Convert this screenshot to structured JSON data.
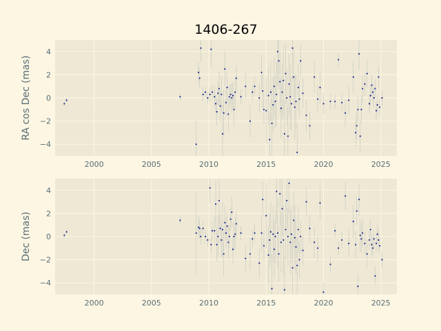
{
  "title": "1406-267",
  "colors": {
    "background": "#fdf6e3",
    "axes_face": "#eee8d5",
    "point": "#1c2a8f",
    "errorbar": "#93a1a1"
  },
  "chart_data": [
    {
      "type": "scatter",
      "ylabel": "RA cos Dec (mas)",
      "xlim": [
        1996.6,
        2026.4
      ],
      "ylim": [
        -5.0,
        5.0
      ],
      "xticks": [
        2000,
        2005,
        2010,
        2015,
        2020,
        2025
      ],
      "yticks": [
        -4,
        -2,
        0,
        2,
        4
      ],
      "grid": true,
      "series": [
        {
          "x": [
            1997.4,
            1997.6,
            2007.5,
            2008.9,
            2009.1,
            2009.2,
            2009.3,
            2009.5,
            2009.7,
            2009.9,
            2010.1,
            2010.2,
            2010.3,
            2010.5,
            2010.6,
            2010.7,
            2010.8,
            2010.9,
            2011.0,
            2011.1,
            2011.2,
            2011.3,
            2011.4,
            2011.5,
            2011.6,
            2011.7,
            2011.8,
            2011.9,
            2012.0,
            2012.1,
            2012.2,
            2012.3,
            2012.4,
            2012.8,
            2013.2,
            2013.6,
            2013.8,
            2014.0,
            2014.4,
            2014.6,
            2014.7,
            2014.8,
            2015.0,
            2015.2,
            2015.3,
            2015.4,
            2015.5,
            2015.6,
            2015.7,
            2015.8,
            2015.9,
            2016.0,
            2016.1,
            2016.2,
            2016.3,
            2016.4,
            2016.5,
            2016.6,
            2016.7,
            2016.8,
            2016.9,
            2017.0,
            2017.1,
            2017.2,
            2017.3,
            2017.4,
            2017.5,
            2017.6,
            2017.7,
            2017.8,
            2017.9,
            2018.0,
            2018.2,
            2018.5,
            2018.8,
            2019.2,
            2019.5,
            2019.7,
            2020.0,
            2020.6,
            2021.0,
            2021.3,
            2021.6,
            2021.9,
            2022.2,
            2022.6,
            2022.8,
            2022.9,
            2023.0,
            2023.1,
            2023.2,
            2023.3,
            2023.4,
            2023.6,
            2023.8,
            2024.0,
            2024.1,
            2024.2,
            2024.3,
            2024.4,
            2024.5,
            2024.6,
            2024.7,
            2024.8,
            2024.9,
            2025.1
          ],
          "y": [
            -0.5,
            -0.2,
            0.1,
            -4.0,
            2.2,
            1.7,
            4.3,
            0.3,
            0.5,
            0.0,
            0.3,
            4.2,
            0.5,
            0.1,
            -0.5,
            -1.2,
            0.4,
            0.8,
            -0.7,
            0.3,
            -3.1,
            -1.3,
            2.5,
            -0.4,
            0.9,
            -1.4,
            0.1,
            0.3,
            0.0,
            0.2,
            -1.0,
            0.5,
            1.7,
            0.1,
            1.0,
            -2.0,
            0.5,
            1.0,
            0.0,
            2.2,
            0.6,
            -1.0,
            -1.1,
            0.2,
            -3.6,
            0.5,
            -2.2,
            -0.6,
            1.0,
            -0.3,
            0.3,
            4.0,
            3.2,
            1.4,
            -0.9,
            0.5,
            1.5,
            -3.1,
            2.1,
            0.0,
            -3.3,
            1.2,
            0.1,
            -0.5,
            4.3,
            1.8,
            -0.8,
            -0.3,
            -4.7,
            0.9,
            -0.1,
            3.2,
            0.4,
            -1.5,
            -2.4,
            1.8,
            -0.1,
            0.9,
            -0.5,
            -0.3,
            -0.3,
            3.3,
            -0.4,
            -1.3,
            -0.2,
            1.8,
            -3.0,
            -2.4,
            -1.0,
            3.8,
            -3.3,
            -1.0,
            0.8,
            1.2,
            2.1,
            -0.5,
            0.2,
            1.1,
            0.5,
            0.0,
            0.8,
            -1.1,
            -0.6,
            1.8,
            -0.8,
            0.0
          ],
          "err": [
            0.2,
            0.2,
            0.3,
            2.0,
            0.9,
            0.9,
            1.2,
            0.6,
            0.5,
            0.5,
            0.6,
            1.5,
            0.6,
            0.9,
            0.8,
            1.2,
            1.0,
            1.5,
            1.4,
            1.6,
            2.5,
            2.0,
            1.5,
            1.2,
            1.2,
            1.5,
            1.0,
            0.9,
            1.3,
            1.2,
            1.4,
            1.4,
            1.1,
            0.6,
            1.1,
            1.4,
            0.7,
            0.8,
            1.3,
            1.5,
            1.5,
            1.3,
            2.8,
            2.5,
            2.3,
            2.6,
            3.0,
            2.4,
            2.5,
            2.3,
            2.8,
            3.0,
            2.4,
            2.7,
            2.6,
            2.5,
            3.0,
            2.9,
            2.6,
            2.4,
            2.5,
            2.6,
            2.8,
            2.4,
            2.9,
            2.5,
            2.8,
            2.4,
            2.5,
            2.0,
            1.6,
            1.4,
            1.3,
            1.3,
            1.2,
            1.3,
            1.2,
            1.4,
            0.9,
            0.7,
            0.6,
            0.6,
            0.7,
            1.2,
            1.2,
            1.4,
            1.2,
            1.2,
            1.1,
            1.4,
            1.4,
            1.2,
            1.2,
            1.0,
            1.2,
            0.8,
            0.9,
            0.9,
            0.8,
            0.8,
            0.8,
            0.8,
            0.8,
            0.9,
            0.8,
            0.7
          ]
        }
      ]
    },
    {
      "type": "scatter",
      "ylabel": "Dec (mas)",
      "xlim": [
        1996.6,
        2026.4
      ],
      "ylim": [
        -5.0,
        5.0
      ],
      "xticks": [
        2000,
        2005,
        2010,
        2015,
        2020,
        2025
      ],
      "yticks": [
        -4,
        -2,
        0,
        2,
        4
      ],
      "grid": true,
      "series": [
        {
          "x": [
            1997.4,
            1997.6,
            2007.5,
            2008.9,
            2009.1,
            2009.2,
            2009.3,
            2009.5,
            2009.7,
            2009.9,
            2010.1,
            2010.2,
            2010.3,
            2010.5,
            2010.6,
            2010.7,
            2010.8,
            2010.9,
            2011.0,
            2011.1,
            2011.2,
            2011.3,
            2011.4,
            2011.5,
            2011.6,
            2011.7,
            2011.8,
            2011.9,
            2012.0,
            2012.1,
            2012.2,
            2012.3,
            2012.4,
            2012.8,
            2013.2,
            2013.6,
            2013.8,
            2014.0,
            2014.4,
            2014.6,
            2014.7,
            2014.8,
            2015.0,
            2015.2,
            2015.3,
            2015.4,
            2015.5,
            2015.6,
            2015.7,
            2015.8,
            2015.9,
            2016.0,
            2016.1,
            2016.2,
            2016.3,
            2016.4,
            2016.5,
            2016.6,
            2016.7,
            2016.8,
            2016.9,
            2017.0,
            2017.1,
            2017.2,
            2017.3,
            2017.4,
            2017.5,
            2017.6,
            2017.7,
            2017.8,
            2017.9,
            2018.0,
            2018.2,
            2018.5,
            2018.8,
            2019.2,
            2019.5,
            2019.7,
            2020.0,
            2020.6,
            2021.0,
            2021.3,
            2021.6,
            2021.9,
            2022.2,
            2022.6,
            2022.8,
            2022.9,
            2023.0,
            2023.1,
            2023.2,
            2023.3,
            2023.4,
            2023.6,
            2023.8,
            2024.0,
            2024.1,
            2024.2,
            2024.3,
            2024.4,
            2024.5,
            2024.6,
            2024.7,
            2024.8,
            2024.9,
            2025.1
          ],
          "y": [
            0.1,
            0.4,
            1.4,
            0.3,
            0.8,
            0.7,
            0.0,
            0.7,
            0.0,
            -0.3,
            4.2,
            -0.7,
            0.5,
            0.5,
            2.8,
            -0.7,
            0.0,
            3.1,
            0.7,
            -0.3,
            0.6,
            -1.5,
            1.2,
            0.3,
            0.9,
            -0.5,
            0.0,
            1.5,
            2.1,
            -1.1,
            0.0,
            0.2,
            1.1,
            0.3,
            -1.9,
            -1.5,
            -0.2,
            0.3,
            -2.3,
            0.3,
            3.2,
            -0.8,
            1.8,
            -1.6,
            -0.3,
            0.4,
            -4.5,
            0.2,
            -1.1,
            0.0,
            3.9,
            0.3,
            -1.5,
            3.7,
            -0.5,
            2.4,
            -0.3,
            -4.6,
            0.6,
            3.1,
            0.0,
            4.6,
            -0.5,
            0.2,
            -2.7,
            1.4,
            -0.1,
            -0.9,
            -2.5,
            0.6,
            -2.0,
            0.0,
            -1.2,
            3.0,
            0.7,
            -0.5,
            -1.0,
            2.9,
            -4.8,
            -2.4,
            0.5,
            -1.0,
            -0.3,
            3.5,
            -0.6,
            1.3,
            -0.7,
            2.2,
            -4.3,
            3.2,
            0.1,
            -0.2,
            0.3,
            -0.6,
            -1.5,
            -0.3,
            0.6,
            -0.7,
            -1.0,
            -0.2,
            -3.4,
            -0.6,
            0.2,
            -0.3,
            -0.8,
            -2.0
          ],
          "err": [
            0.2,
            0.2,
            0.3,
            3.5,
            1.0,
            0.8,
            0.7,
            0.6,
            0.5,
            0.5,
            1.3,
            0.7,
            0.8,
            1.2,
            2.0,
            1.5,
            1.8,
            2.5,
            1.3,
            1.5,
            2.4,
            1.9,
            1.4,
            1.3,
            1.2,
            1.4,
            1.0,
            1.0,
            1.3,
            1.2,
            1.2,
            1.4,
            1.1,
            0.6,
            1.1,
            1.4,
            0.8,
            0.8,
            1.3,
            1.5,
            1.5,
            1.3,
            2.8,
            2.5,
            2.3,
            2.6,
            3.0,
            2.4,
            2.5,
            2.3,
            2.8,
            3.0,
            2.4,
            2.7,
            2.6,
            2.5,
            3.0,
            2.9,
            2.6,
            2.4,
            2.5,
            2.6,
            2.8,
            2.4,
            2.9,
            2.5,
            2.8,
            2.4,
            2.5,
            2.0,
            1.6,
            1.4,
            1.3,
            1.3,
            1.2,
            1.3,
            1.2,
            1.4,
            0.9,
            0.7,
            0.6,
            0.6,
            0.7,
            1.2,
            1.2,
            1.4,
            1.2,
            1.2,
            1.1,
            1.4,
            1.4,
            1.2,
            1.2,
            1.0,
            1.2,
            0.8,
            0.9,
            0.9,
            0.8,
            0.8,
            0.8,
            0.8,
            0.8,
            0.9,
            0.8,
            0.7
          ]
        }
      ]
    }
  ]
}
